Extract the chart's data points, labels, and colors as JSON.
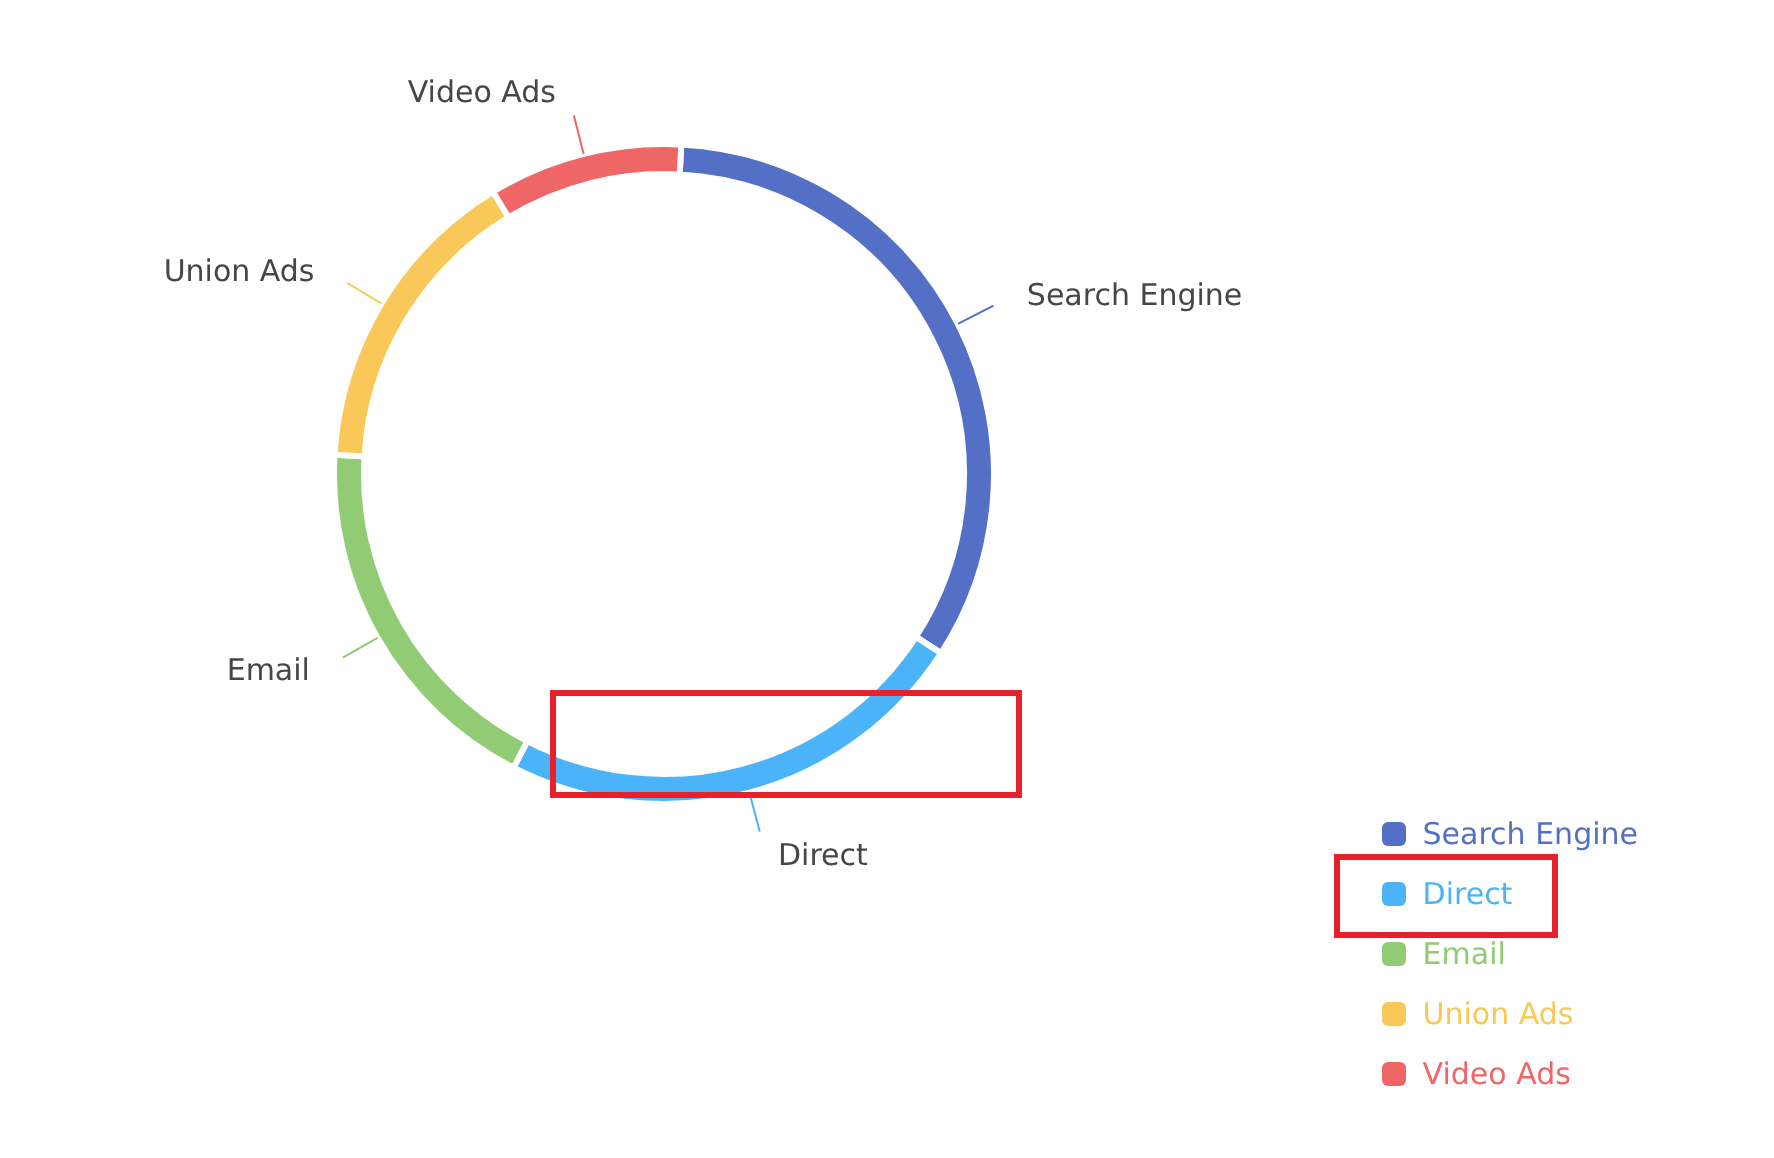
{
  "chart_data": {
    "type": "donut",
    "categories": [
      "Search Engine",
      "Direct",
      "Email",
      "Union Ads",
      "Video Ads"
    ],
    "values": [
      33.3,
      23.4,
      18.4,
      15.4,
      9.5
    ],
    "colors": [
      "#5470c6",
      "#4bb4f8",
      "#91cc75",
      "#fac858",
      "#ee6666"
    ],
    "legend": "bottom right"
  }
}
